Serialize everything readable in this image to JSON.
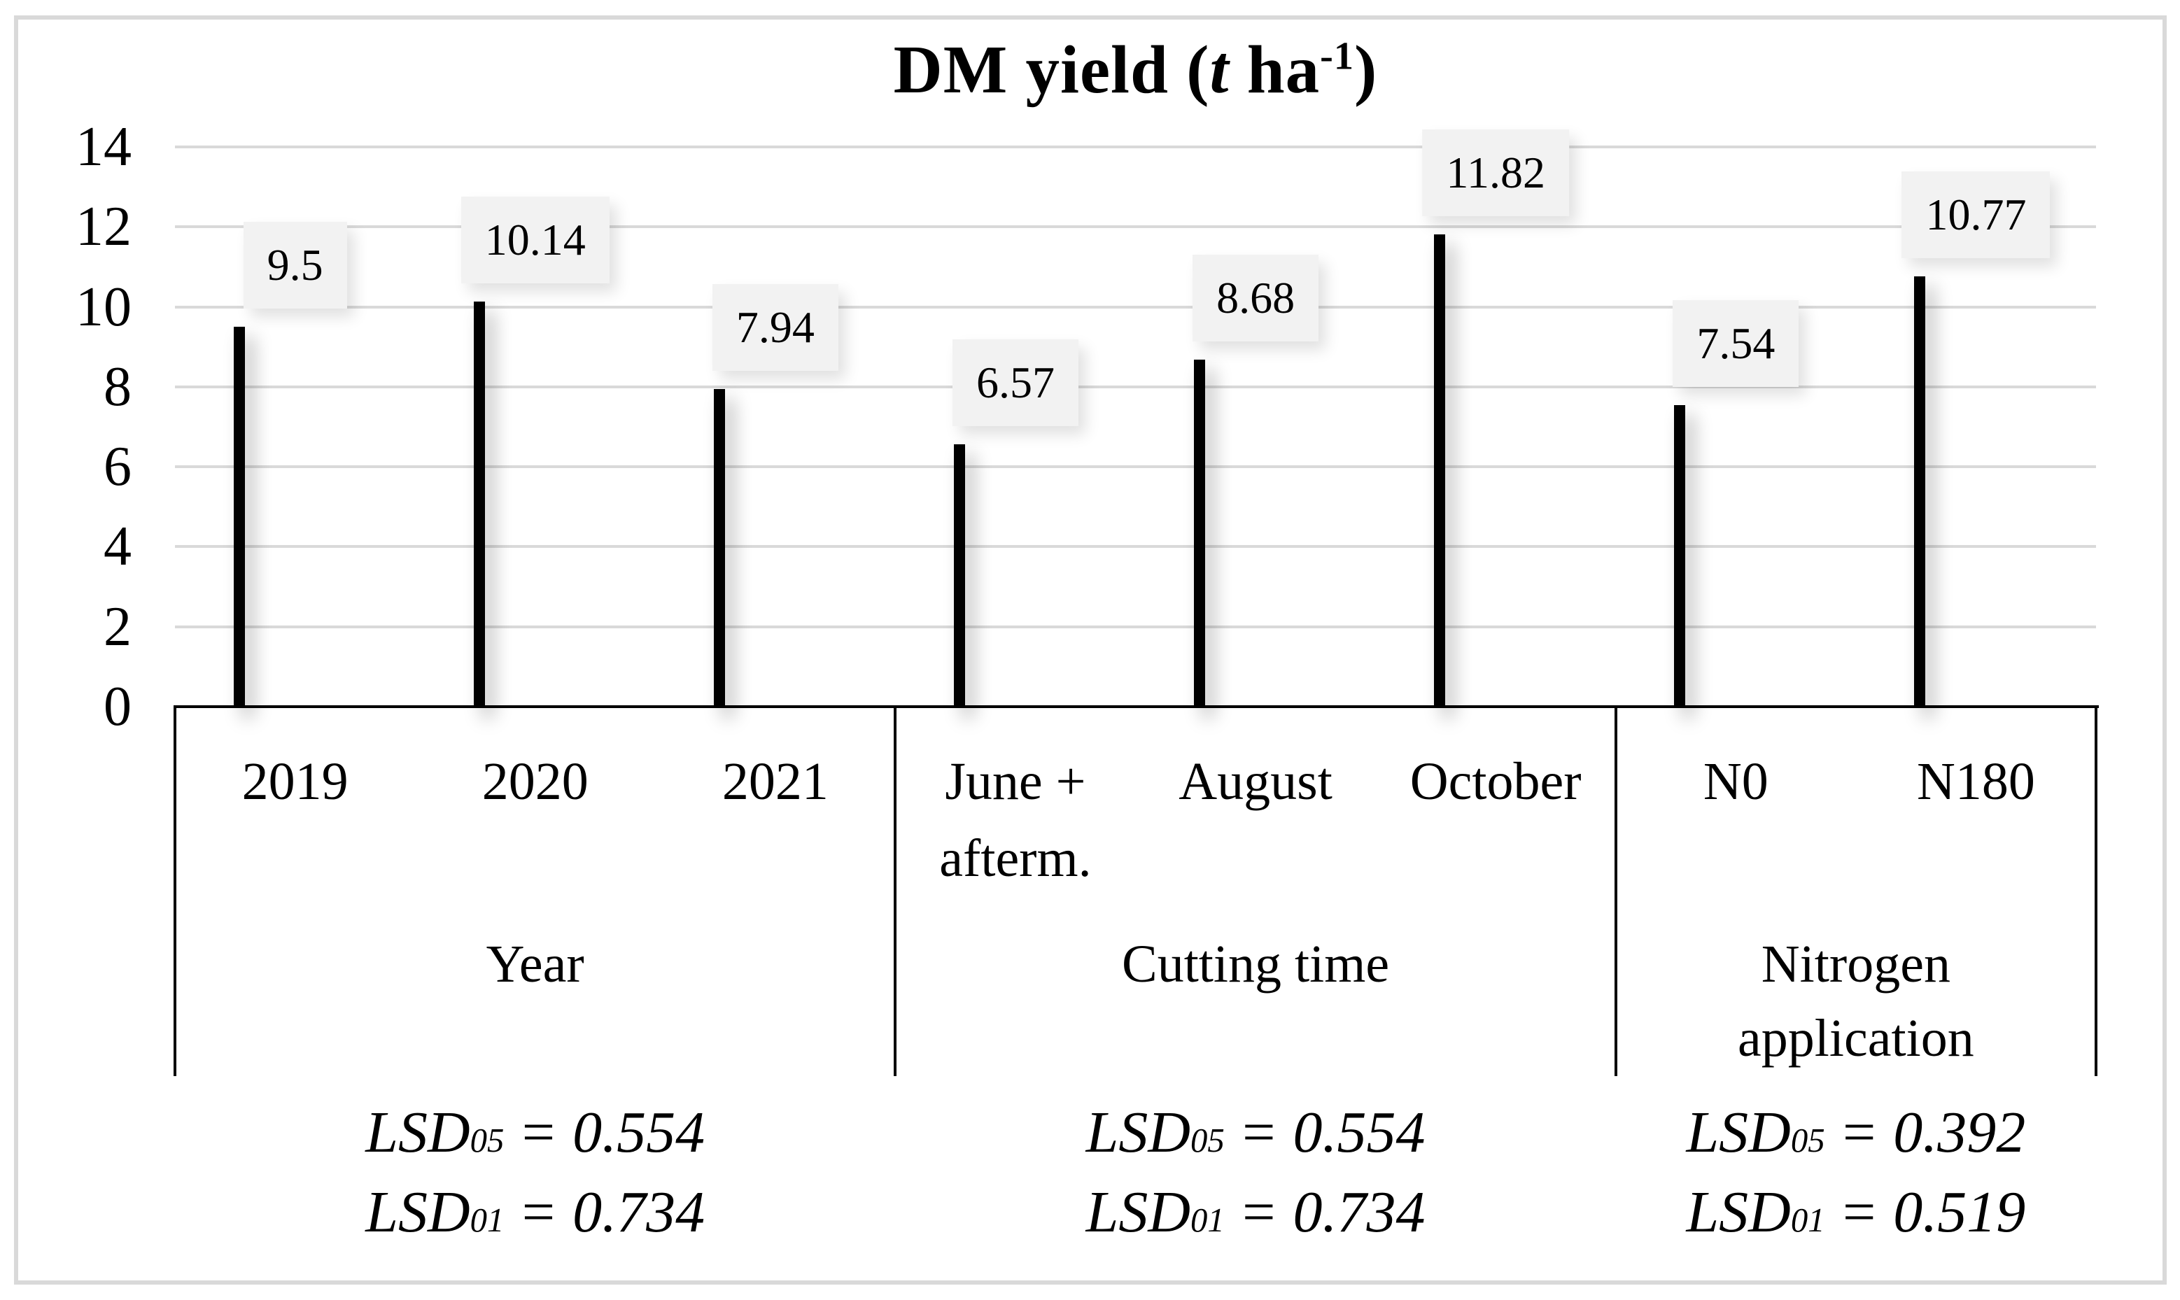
{
  "figure": {
    "title_parts": {
      "p1": "DM yield (",
      "t_italic": "t",
      "p2": " ha",
      "sup": "-1",
      "p3": ")"
    }
  },
  "chart_data": {
    "type": "bar",
    "title": "DM yield (t ha⁻¹)",
    "xlabel": "",
    "ylabel": "",
    "ylim": [
      0,
      14
    ],
    "yticks": [
      0,
      2,
      4,
      6,
      8,
      10,
      12,
      14
    ],
    "grid": "horizontal",
    "legend": "none",
    "colors": {
      "gridline": "#d9d9d9",
      "frame": "#d9d9d9",
      "axis": "#000000",
      "bar_border": "#000000",
      "value_label_bg": "#f2f2f2"
    },
    "groups": [
      {
        "label": "Year",
        "bar_color": "#f1f1f1",
        "categories": [
          "2019",
          "2020",
          "2021"
        ],
        "values": [
          9.5,
          10.14,
          7.94
        ],
        "value_labels": [
          "9.5",
          "10.14",
          "7.94"
        ],
        "lsd": [
          {
            "name": "LSD",
            "sub": "05",
            "eq": "= 0.554"
          },
          {
            "name": "LSD",
            "sub": "01",
            "eq": "= 0.734"
          }
        ]
      },
      {
        "label": "Cutting time",
        "bar_color": "#bfbfbf",
        "categories": [
          "June +\nafterm.",
          "August",
          "October"
        ],
        "values": [
          6.57,
          8.68,
          11.82
        ],
        "value_labels": [
          "6.57",
          "8.68",
          "11.82"
        ],
        "lsd": [
          {
            "name": "LSD",
            "sub": "05",
            "eq": "= 0.554"
          },
          {
            "name": "LSD",
            "sub": "01",
            "eq": "= 0.734"
          }
        ]
      },
      {
        "label": "Nitrogen\napplication",
        "bar_color": "#828282",
        "categories": [
          "N0",
          "N180"
        ],
        "values": [
          7.54,
          10.77
        ],
        "value_labels": [
          "7.54",
          "10.77"
        ],
        "lsd": [
          {
            "name": "LSD",
            "sub": "05",
            "eq": "= 0.392"
          },
          {
            "name": "LSD",
            "sub": "01",
            "eq": "= 0.519"
          }
        ]
      }
    ]
  }
}
